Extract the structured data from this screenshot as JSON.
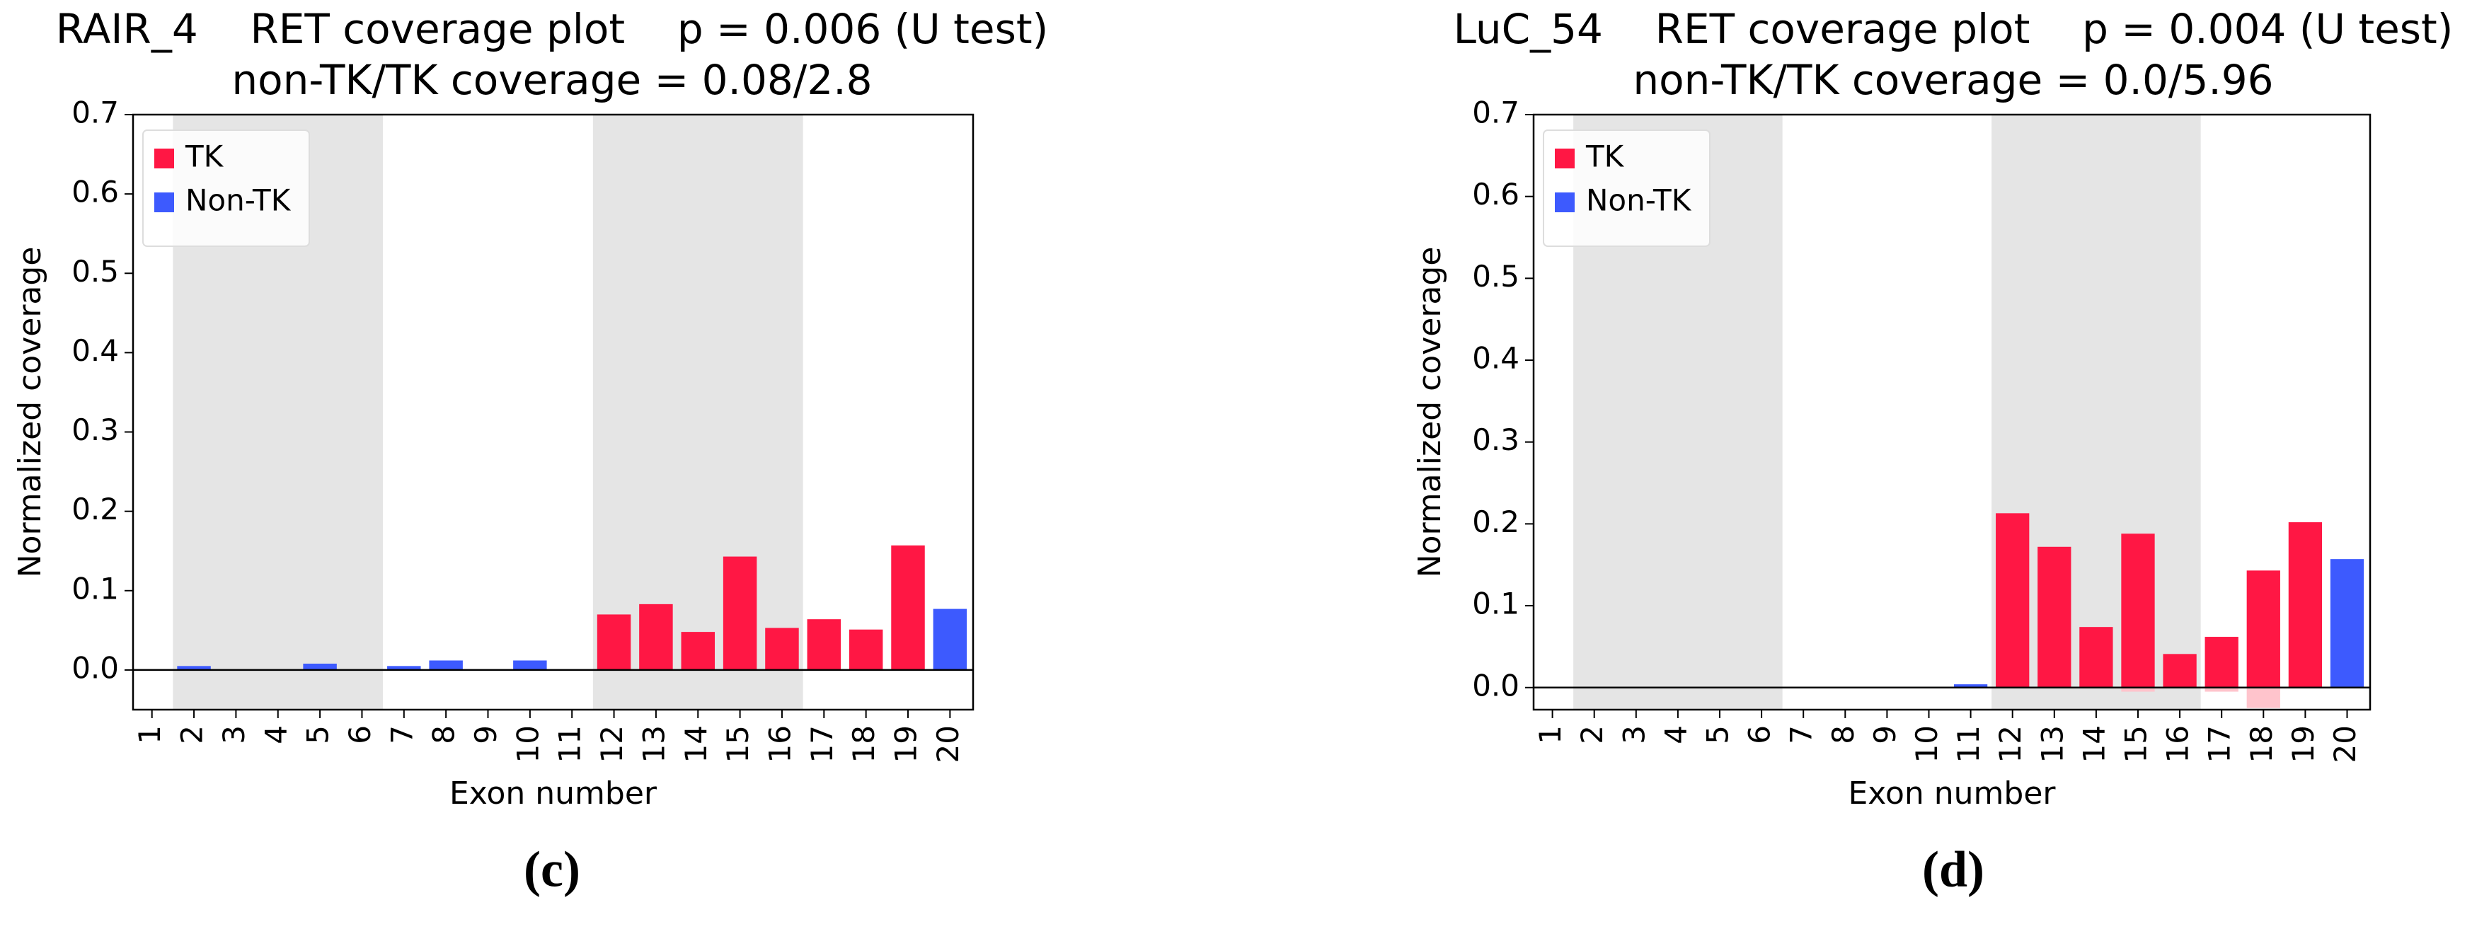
{
  "chart_data": [
    {
      "type": "bar",
      "title": "RAIR_4    RET coverage plot    p = 0.006 (U test)",
      "subtitle": "non-TK/TK coverage = 0.08/2.8",
      "y_label": "Normalized coverage",
      "x_label": "Exon number",
      "caption": "(c)",
      "x": [
        1,
        2,
        3,
        4,
        5,
        6,
        7,
        8,
        9,
        10,
        11,
        12,
        13,
        14,
        15,
        16,
        17,
        18,
        19,
        20
      ],
      "xlim": [
        0.55,
        20.55
      ],
      "xticks": [
        1,
        2,
        3,
        4,
        5,
        6,
        7,
        8,
        9,
        10,
        11,
        12,
        13,
        14,
        15,
        16,
        17,
        18,
        19,
        20
      ],
      "ylim": [
        -0.05,
        0.7
      ],
      "yticks": [
        {
          "value": 0,
          "label": "0.0"
        },
        0.1,
        0.2,
        0.3,
        0.4,
        0.5,
        0.6,
        0.7
      ],
      "shaded_spans": [
        [
          1.5,
          6.5
        ],
        [
          11.5,
          16.5
        ]
      ],
      "shade_color": "#e5e5e5",
      "legend": "upper left",
      "series": [
        {
          "name": "TK",
          "color": "#ff1744",
          "values": [
            null,
            null,
            null,
            null,
            null,
            null,
            null,
            null,
            null,
            null,
            null,
            0.07,
            0.083,
            0.048,
            0.143,
            0.053,
            0.064,
            0.051,
            0.157,
            null
          ]
        },
        {
          "name": "Non-TK",
          "color": "#3d5afe",
          "values": [
            0,
            0.005,
            0,
            0,
            0.008,
            0,
            0.005,
            0.012,
            0,
            0.012,
            0,
            null,
            null,
            null,
            null,
            null,
            null,
            null,
            null,
            0.077
          ]
        }
      ]
    },
    {
      "type": "bar",
      "title": "LuC_54    RET coverage plot    p = 0.004 (U test)",
      "subtitle": "non-TK/TK coverage = 0.0/5.96",
      "y_label": "Normalized coverage",
      "x_label": "Exon number",
      "caption": "(d)",
      "x": [
        1,
        2,
        3,
        4,
        5,
        6,
        7,
        8,
        9,
        10,
        11,
        12,
        13,
        14,
        15,
        16,
        17,
        18,
        19,
        20
      ],
      "xlim": [
        0.55,
        20.55
      ],
      "xticks": [
        1,
        2,
        3,
        4,
        5,
        6,
        7,
        8,
        9,
        10,
        11,
        12,
        13,
        14,
        15,
        16,
        17,
        18,
        19,
        20
      ],
      "ylim": [
        -0.027,
        0.7
      ],
      "yticks": [
        {
          "value": 0,
          "label": "0.0"
        },
        0.1,
        0.2,
        0.3,
        0.4,
        0.5,
        0.6,
        0.7
      ],
      "shaded_spans": [
        [
          1.5,
          6.5
        ],
        [
          11.5,
          16.5
        ]
      ],
      "shade_color": "#e5e5e5",
      "legend": "upper left",
      "series": [
        {
          "name": "TK",
          "color": "#ff1744",
          "values": [
            null,
            null,
            null,
            null,
            null,
            null,
            null,
            null,
            null,
            null,
            null,
            0.213,
            0.172,
            0.074,
            0.188,
            0.041,
            0.062,
            0.143,
            0.202,
            null
          ]
        },
        {
          "name": "Non-TK",
          "color": "#3d5afe",
          "values": [
            0,
            0,
            0,
            0,
            0,
            0,
            0,
            0,
            0,
            0,
            0.004,
            null,
            null,
            null,
            null,
            null,
            null,
            null,
            null,
            0.157
          ]
        },
        {
          "color": "#ffc4cc",
          "values": [
            null,
            null,
            null,
            null,
            null,
            null,
            null,
            null,
            null,
            null,
            null,
            null,
            null,
            null,
            -0.005,
            null,
            -0.005,
            -0.025,
            null,
            null
          ]
        }
      ]
    }
  ]
}
